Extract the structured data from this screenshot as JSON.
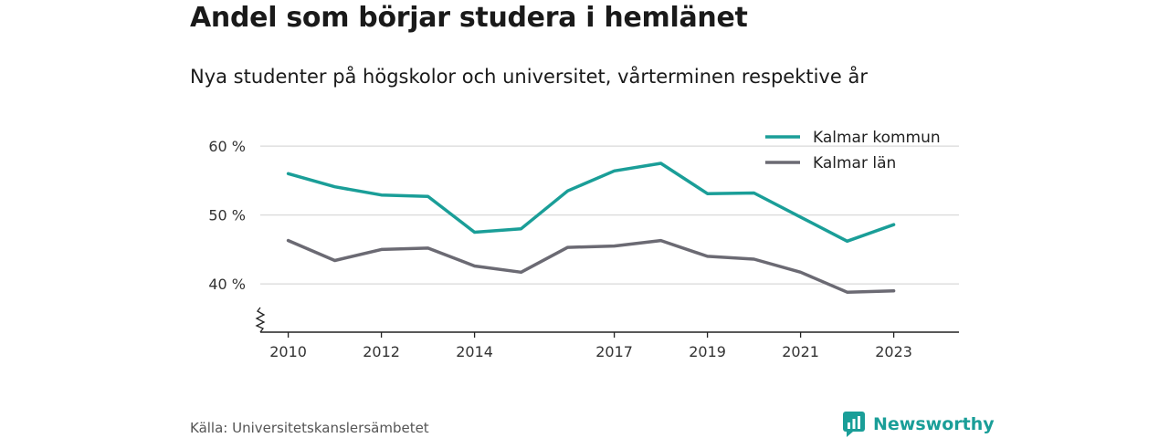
{
  "header": {
    "title": "Andel som börjar studera i hemlänet",
    "subtitle": "Nya studenter på högskolor och universitet, vårterminen respektive år"
  },
  "footer": {
    "source": "Källa: Universitetskanslersämbetet",
    "brand": "Newsworthy",
    "brand_icon": "newsworthy-logo-icon",
    "brand_color": "#1a9e98"
  },
  "chart_data": {
    "type": "line",
    "x": [
      2010,
      2011,
      2012,
      2013,
      2014,
      2015,
      2016,
      2017,
      2018,
      2019,
      2020,
      2021,
      2022,
      2023
    ],
    "x_tick_labels": [
      "2010",
      "2012",
      "2014",
      "2017",
      "2019",
      "2021",
      "2023"
    ],
    "x_ticks": [
      2010,
      2012,
      2014,
      2017,
      2019,
      2021,
      2023
    ],
    "y_ticks": [
      40,
      50,
      60
    ],
    "y_tick_labels": [
      "40 %",
      "50 %",
      "60 %"
    ],
    "ylim": [
      33,
      62
    ],
    "xlim": [
      2009.4,
      2024.4
    ],
    "axis_break": true,
    "grid": "horizontal",
    "legend_position": "top-right",
    "series": [
      {
        "name": "Kalmar kommun",
        "color": "#1a9e98",
        "values": [
          56.0,
          54.1,
          52.9,
          52.7,
          47.5,
          48.0,
          53.5,
          56.4,
          57.5,
          53.1,
          53.2,
          49.7,
          46.2,
          48.6
        ]
      },
      {
        "name": "Kalmar län",
        "color": "#6b6a73",
        "values": [
          46.3,
          43.4,
          45.0,
          45.2,
          42.6,
          41.7,
          45.3,
          45.5,
          46.3,
          44.0,
          43.6,
          41.7,
          38.8,
          39.0
        ]
      }
    ]
  }
}
